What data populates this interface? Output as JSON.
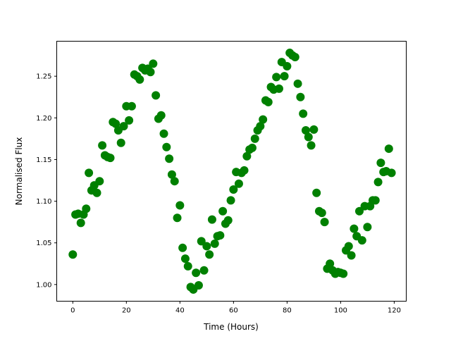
{
  "chart_data": {
    "type": "scatter",
    "title": "",
    "xlabel": "Time (Hours)",
    "ylabel": "Normalised Flux",
    "xlim": [
      -6,
      124.5
    ],
    "ylim": [
      0.98,
      1.292
    ],
    "xticks": [
      0,
      20,
      40,
      60,
      80,
      100,
      120
    ],
    "xtick_labels": [
      "0",
      "20",
      "40",
      "60",
      "80",
      "100",
      "120"
    ],
    "yticks": [
      1.0,
      1.05,
      1.1,
      1.15,
      1.2,
      1.25
    ],
    "ytick_labels": [
      "1.00",
      "1.05",
      "1.10",
      "1.15",
      "1.20",
      "1.25"
    ],
    "grid": false,
    "marker_color": "#008000",
    "x": [
      0,
      1,
      2,
      3,
      4,
      5,
      6,
      7,
      8,
      9,
      10,
      11,
      12,
      13,
      14,
      15,
      16,
      17,
      18,
      19,
      20,
      21,
      22,
      23,
      24,
      25,
      26,
      27,
      28,
      29,
      30,
      31,
      32,
      33,
      34,
      35,
      36,
      37,
      38,
      39,
      40,
      41,
      42,
      43,
      44,
      45,
      46,
      47,
      48,
      49,
      50,
      51,
      52,
      53,
      54,
      55,
      56,
      57,
      58,
      59,
      60,
      61,
      62,
      63,
      64,
      65,
      66,
      67,
      68,
      69,
      70,
      71,
      72,
      73,
      74,
      75,
      76,
      77,
      78,
      79,
      80,
      81,
      82,
      83,
      84,
      85,
      86,
      87,
      88,
      89,
      90,
      91,
      92,
      93,
      94,
      95,
      96,
      97,
      98,
      99,
      100,
      101,
      102,
      103,
      104,
      105,
      106,
      107,
      108,
      109,
      110,
      111,
      112,
      113,
      114,
      115,
      116,
      117,
      118,
      119
    ],
    "y": [
      1.036,
      1.084,
      1.085,
      1.074,
      1.084,
      1.091,
      1.134,
      1.113,
      1.119,
      1.11,
      1.124,
      1.167,
      1.155,
      1.153,
      1.152,
      1.195,
      1.193,
      1.185,
      1.17,
      1.19,
      1.214,
      1.197,
      1.214,
      1.252,
      1.25,
      1.246,
      1.26,
      1.257,
      1.259,
      1.255,
      1.265,
      1.227,
      1.199,
      1.203,
      1.181,
      1.165,
      1.151,
      1.132,
      1.124,
      1.08,
      1.095,
      1.044,
      1.031,
      1.022,
      0.997,
      0.994,
      1.014,
      0.999,
      1.052,
      1.017,
      1.046,
      1.036,
      1.078,
      1.049,
      1.058,
      1.059,
      1.088,
      1.073,
      1.077,
      1.101,
      1.114,
      1.135,
      1.121,
      1.134,
      1.137,
      1.154,
      1.162,
      1.164,
      1.175,
      1.185,
      1.19,
      1.198,
      1.221,
      1.219,
      1.237,
      1.234,
      1.249,
      1.235,
      1.267,
      1.25,
      1.262,
      1.278,
      1.275,
      1.273,
      1.241,
      1.225,
      1.205,
      1.185,
      1.177,
      1.167,
      1.186,
      1.11,
      1.088,
      1.086,
      1.075,
      1.019,
      1.025,
      1.017,
      1.013,
      1.015,
      1.014,
      1.013,
      1.041,
      1.046,
      1.035,
      1.067,
      1.058,
      1.088,
      1.053,
      1.094,
      1.069,
      1.094,
      1.101,
      1.101,
      1.123,
      1.146,
      1.135,
      1.136,
      1.163,
      1.134
    ]
  }
}
